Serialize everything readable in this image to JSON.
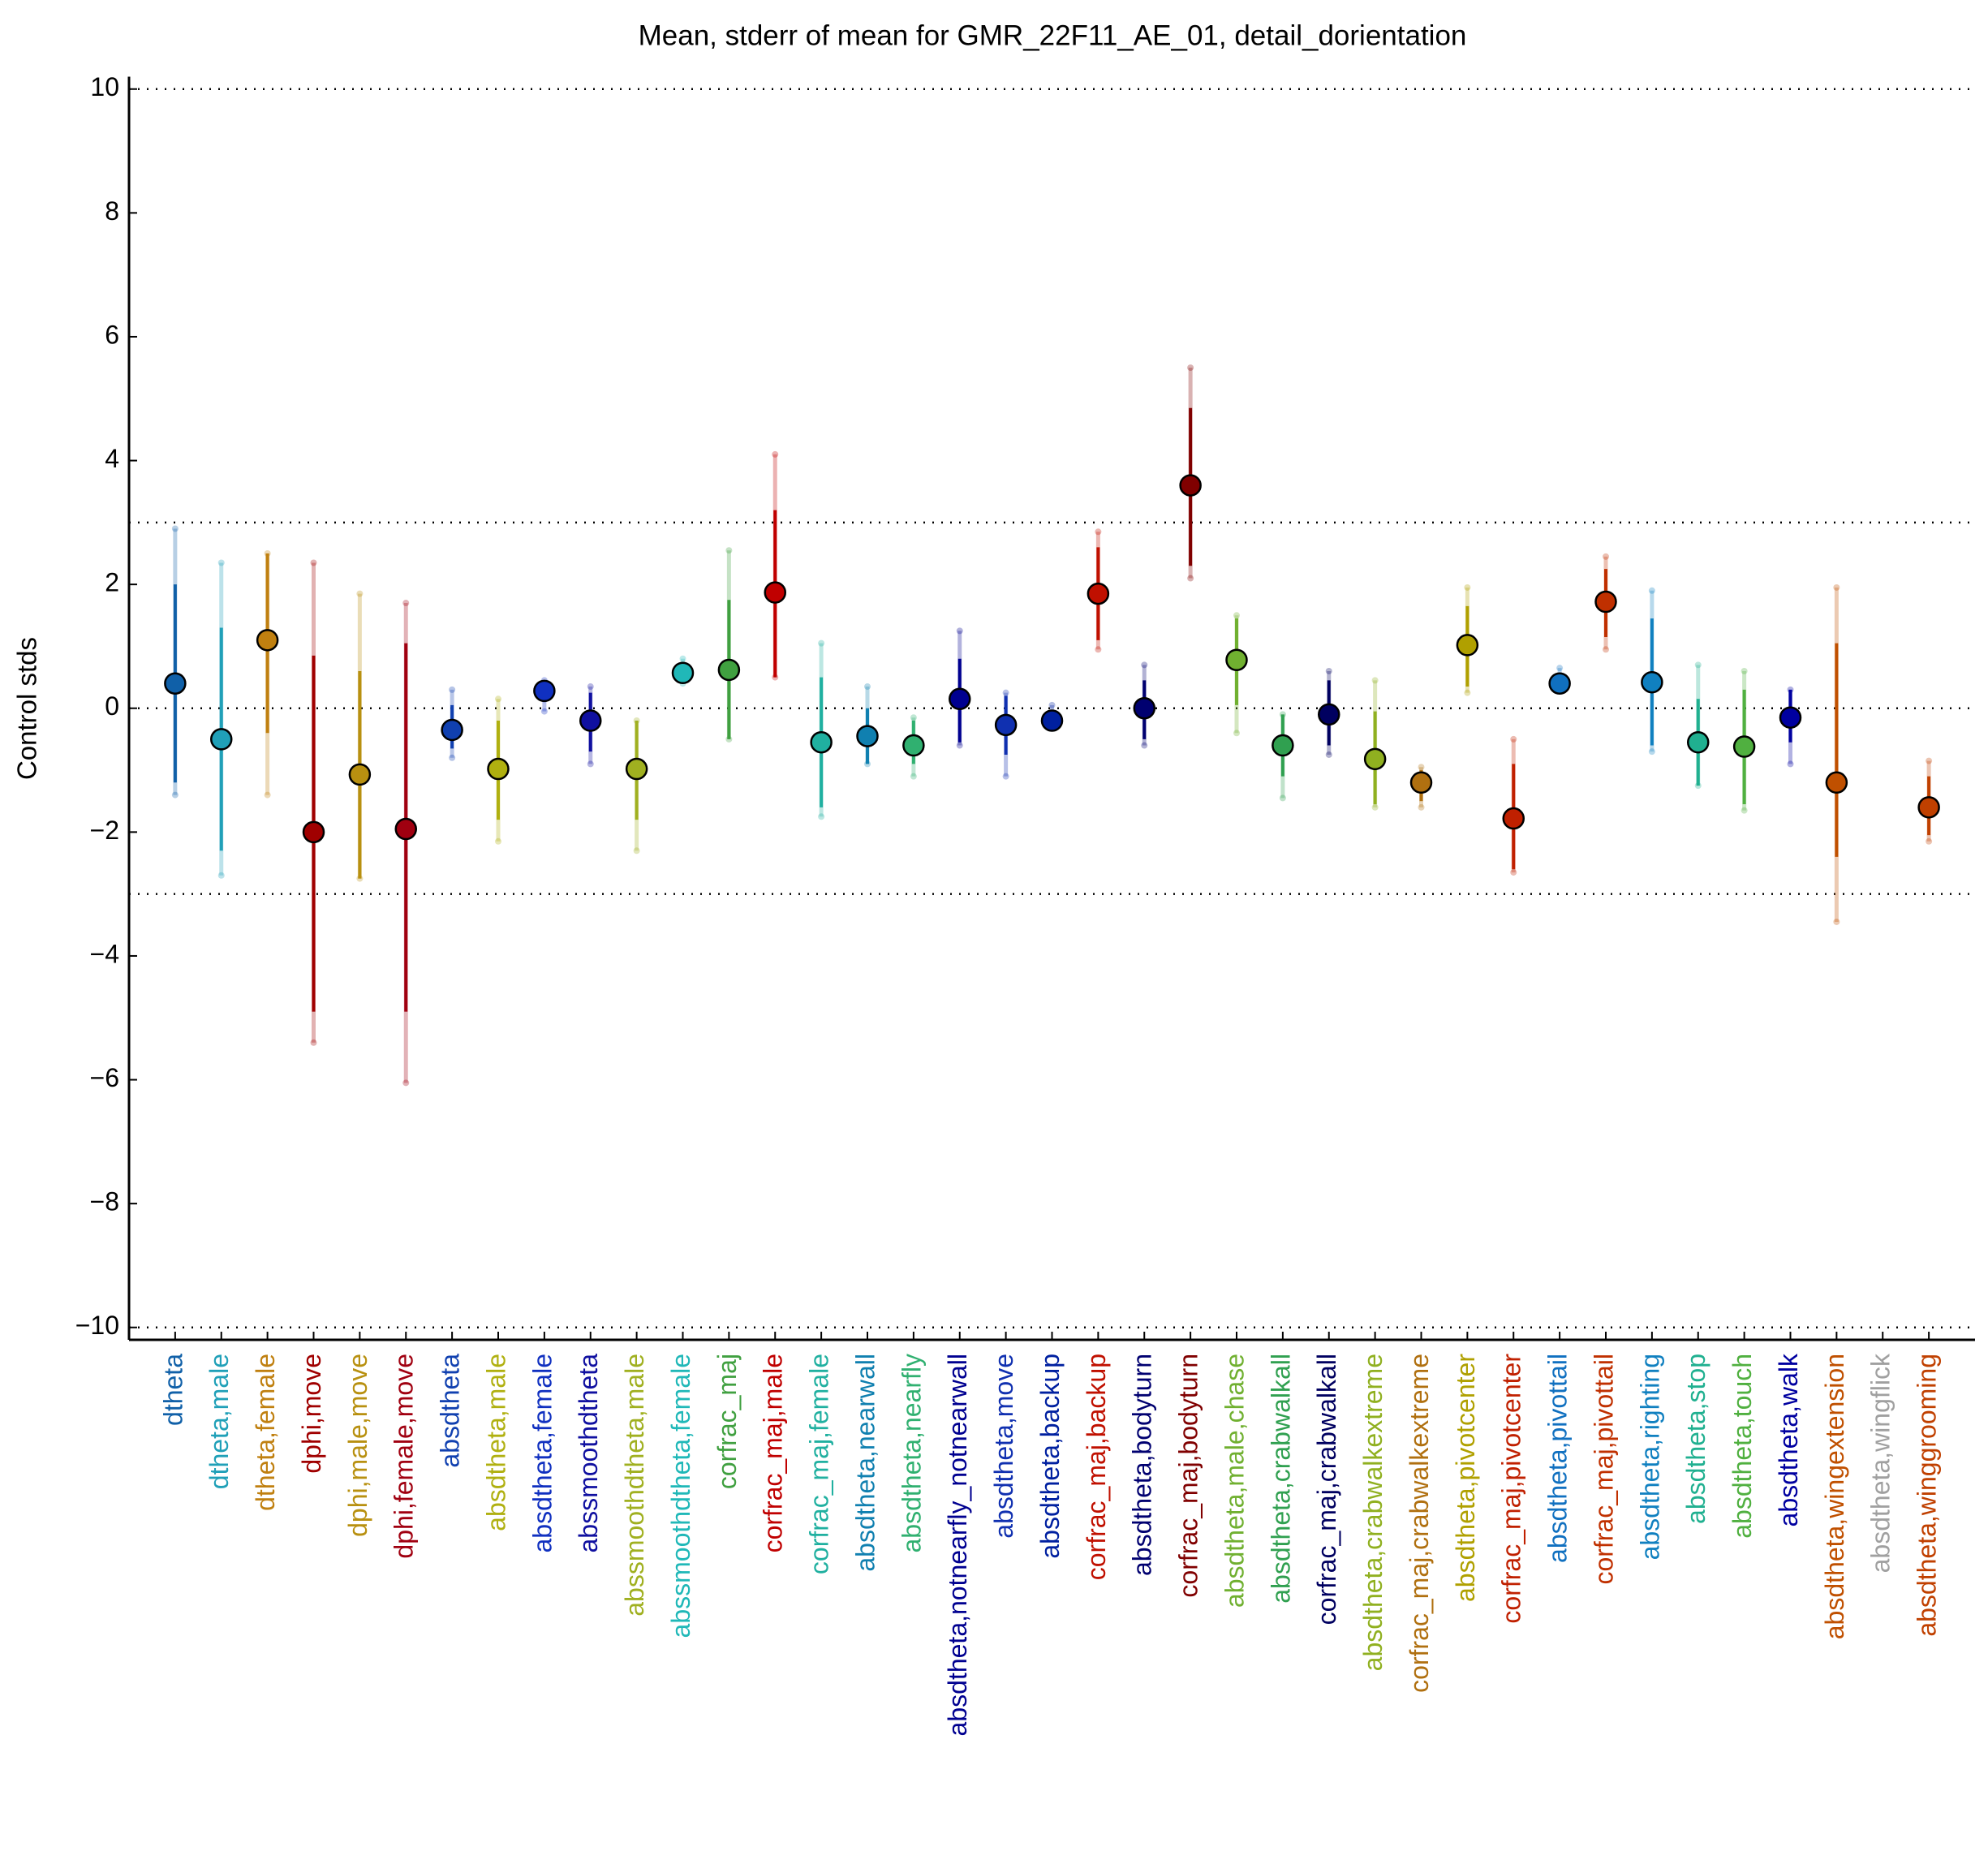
{
  "chart_data": {
    "type": "errorbar",
    "title": "Mean, stderr of mean for GMR_22F11_AE_01, detail_dorientation",
    "y_label": "Control stds",
    "categories": [
      "dtheta",
      "dtheta,male",
      "dtheta,female",
      "dphi,move",
      "dphi,male,move",
      "dphi,female,move",
      "absdtheta",
      "absdtheta,male",
      "absdtheta,female",
      "abssmoothdtheta",
      "abssmoothdtheta,male",
      "abssmoothdtheta,female",
      "corfrac_maj",
      "corfrac_maj,male",
      "corfrac_maj,female",
      "absdtheta,nearwall",
      "absdtheta,nearfly",
      "absdtheta,notnearfly_notnearwall",
      "absdtheta,move",
      "absdtheta,backup",
      "corfrac_maj,backup",
      "absdtheta,bodyturn",
      "corfrac_maj,bodyturn",
      "absdtheta,male,chase",
      "absdtheta,crabwalkall",
      "corfrac_maj,crabwalkall",
      "absdtheta,crabwalkextreme",
      "corfrac_maj,crabwalkextreme",
      "absdtheta,pivotcenter",
      "corfrac_maj,pivotcenter",
      "absdtheta,pivottail",
      "corfrac_maj,pivottail",
      "absdtheta,righting",
      "absdtheta,stop",
      "absdtheta,touch",
      "absdtheta,walk",
      "absdtheta,wingextension",
      "absdtheta,wingflick",
      "absdtheta,winggrooming"
    ],
    "colors": [
      "#1060a8",
      "#20a0b8",
      "#c08010",
      "#a00000",
      "#b89010",
      "#a00010",
      "#1040b0",
      "#b0b010",
      "#1030c0",
      "#1010a0",
      "#a0b020",
      "#20b8b8",
      "#40a040",
      "#c00000",
      "#20b0a0",
      "#1080b0",
      "#30b070",
      "#000090",
      "#1030b0",
      "#0020a0",
      "#c01000",
      "#000070",
      "#800000",
      "#70b030",
      "#30a050",
      "#000060",
      "#90b020",
      "#b07010",
      "#b0a000",
      "#c02000",
      "#1070c0",
      "#c03000",
      "#1080c0",
      "#20b090",
      "#50b040",
      "#0000a0",
      "#c05000",
      "#a0a0a0",
      "#c04000"
    ],
    "values": [
      0.4,
      -0.5,
      1.1,
      -2.0,
      -1.07,
      -1.95,
      -0.35,
      -0.98,
      0.28,
      -0.2,
      -0.98,
      0.57,
      0.62,
      1.87,
      -0.55,
      -0.45,
      -0.6,
      0.15,
      -0.27,
      -0.2,
      1.85,
      0.0,
      3.6,
      0.78,
      -0.6,
      -0.1,
      -0.82,
      -1.2,
      1.02,
      -1.78,
      0.4,
      1.72,
      0.42,
      -0.55,
      -0.62,
      -0.15,
      -1.2,
      null,
      -1.6
    ],
    "stderr_low": [
      -1.2,
      -2.3,
      -0.4,
      -4.9,
      -2.75,
      -4.9,
      -0.65,
      -1.8,
      0.1,
      -0.7,
      -1.8,
      0.45,
      -0.5,
      0.5,
      -1.6,
      -0.9,
      -0.9,
      -0.55,
      -0.75,
      -0.3,
      1.1,
      -0.5,
      2.3,
      0.05,
      -1.1,
      -0.6,
      -1.55,
      -1.5,
      0.35,
      -2.6,
      0.3,
      1.15,
      -0.6,
      -1.25,
      -1.55,
      -0.55,
      -2.4,
      null,
      -2.05
    ],
    "stderr_high": [
      2.0,
      1.3,
      2.5,
      0.85,
      0.6,
      1.05,
      0.05,
      -0.2,
      0.4,
      0.25,
      -0.2,
      0.7,
      1.75,
      3.2,
      0.5,
      0.0,
      -0.2,
      0.8,
      0.2,
      -0.1,
      2.6,
      0.45,
      4.85,
      1.45,
      -0.1,
      0.45,
      -0.05,
      -1.0,
      1.65,
      -0.9,
      0.55,
      2.25,
      1.45,
      0.15,
      0.3,
      0.3,
      1.05,
      null,
      -1.1
    ],
    "range_low": [
      -1.4,
      -2.7,
      -1.4,
      -5.4,
      -2.75,
      -6.05,
      -0.8,
      -2.15,
      -0.05,
      -0.9,
      -2.3,
      0.4,
      -0.5,
      0.5,
      -1.75,
      -0.9,
      -1.1,
      -0.6,
      -1.1,
      -0.3,
      0.95,
      -0.6,
      2.1,
      -0.4,
      -1.45,
      -0.75,
      -1.6,
      -1.6,
      0.25,
      -2.65,
      0.3,
      0.95,
      -0.7,
      -1.25,
      -1.65,
      -0.9,
      -3.45,
      null,
      -2.15
    ],
    "range_high": [
      2.9,
      2.35,
      2.5,
      2.35,
      1.85,
      1.7,
      0.3,
      0.15,
      0.45,
      0.35,
      -0.2,
      0.8,
      2.55,
      4.1,
      1.05,
      0.35,
      -0.15,
      1.25,
      0.25,
      0.05,
      2.85,
      0.7,
      5.5,
      1.5,
      -0.1,
      0.6,
      0.45,
      -0.95,
      1.95,
      -0.5,
      0.65,
      2.45,
      1.9,
      0.7,
      0.6,
      0.3,
      1.95,
      null,
      -0.85
    ],
    "ylim": [
      -10.2,
      10.2
    ],
    "yticks": [
      {
        "value": -10,
        "label": "−10"
      },
      {
        "value": -8,
        "label": "−8"
      },
      {
        "value": -6,
        "label": "−6"
      },
      {
        "value": -4,
        "label": "−4"
      },
      {
        "value": -2,
        "label": "−2"
      },
      0,
      2,
      4,
      6,
      8,
      10
    ],
    "reference_lines": [
      10,
      3,
      0,
      -3,
      -10
    ]
  }
}
